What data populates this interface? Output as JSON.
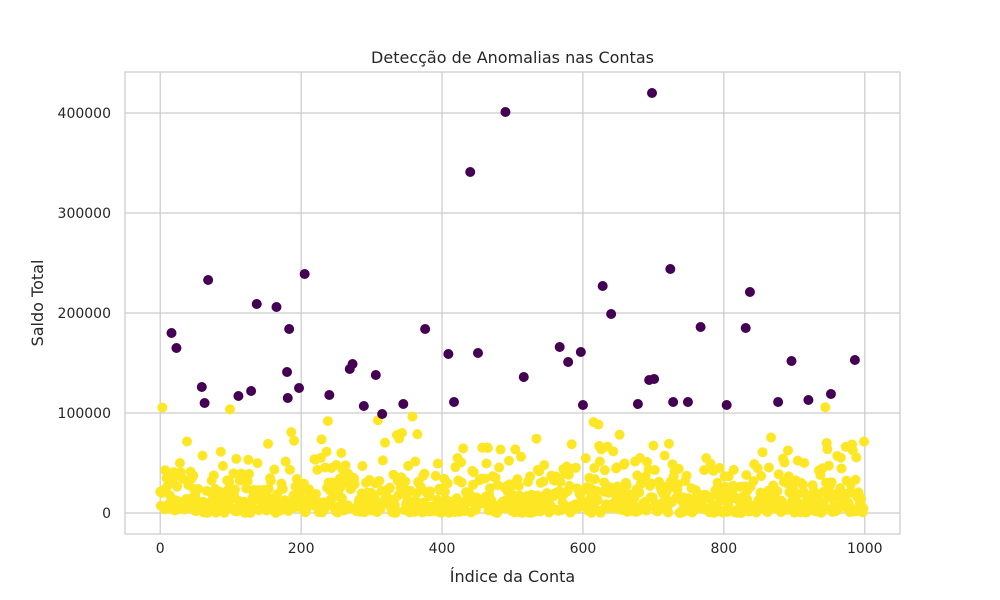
{
  "chart_data": {
    "type": "scatter",
    "title": "Detecção de Anomalias nas Contas",
    "xlabel": "Índice da Conta",
    "ylabel": "Saldo Total",
    "xlim": [
      -50,
      1050
    ],
    "ylim": [
      -21000,
      441000
    ],
    "x_ticks": [
      0,
      200,
      400,
      600,
      800,
      1000
    ],
    "y_ticks": [
      0,
      100000,
      200000,
      300000,
      400000
    ],
    "grid": true,
    "legend": "none",
    "colors": {
      "anomaly": "#440154",
      "normal": "#fde725",
      "grid": "#cccccc",
      "axes_edge": "#cccccc"
    },
    "normal_points_note_count": 950,
    "series": [
      {
        "key": "anomaly",
        "points": [
          [
            16,
            180000
          ],
          [
            23,
            165000
          ],
          [
            59,
            126000
          ],
          [
            63,
            110000
          ],
          [
            68,
            233000
          ],
          [
            111,
            117000
          ],
          [
            129,
            122000
          ],
          [
            137,
            209000
          ],
          [
            165,
            206000
          ],
          [
            180,
            141000
          ],
          [
            181,
            115000
          ],
          [
            183,
            184000
          ],
          [
            197,
            125000
          ],
          [
            205,
            239000
          ],
          [
            240,
            118000
          ],
          [
            269,
            144000
          ],
          [
            273,
            149000
          ],
          [
            289,
            107000
          ],
          [
            306,
            138000
          ],
          [
            315,
            99000
          ],
          [
            345,
            109000
          ],
          [
            376,
            184000
          ],
          [
            409,
            159000
          ],
          [
            417,
            111000
          ],
          [
            440,
            341000
          ],
          [
            451,
            160000
          ],
          [
            490,
            401000
          ],
          [
            516,
            136000
          ],
          [
            567,
            166000
          ],
          [
            579,
            151000
          ],
          [
            597,
            161000
          ],
          [
            600,
            108000
          ],
          [
            628,
            227000
          ],
          [
            640,
            199000
          ],
          [
            678,
            109000
          ],
          [
            694,
            133000
          ],
          [
            698,
            420000
          ],
          [
            701,
            134000
          ],
          [
            724,
            244000
          ],
          [
            728,
            111000
          ],
          [
            749,
            111000
          ],
          [
            767,
            186000
          ],
          [
            804,
            108000
          ],
          [
            831,
            185000
          ],
          [
            837,
            221000
          ],
          [
            877,
            111000
          ],
          [
            896,
            152000
          ],
          [
            920,
            113000
          ],
          [
            952,
            119000
          ],
          [
            986,
            153000
          ]
        ]
      }
    ]
  }
}
